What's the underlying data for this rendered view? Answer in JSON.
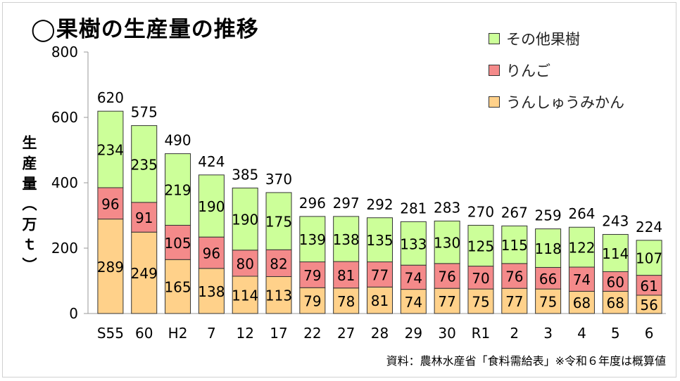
{
  "title": "◯果樹の生産量の推移",
  "source": "資料：農林水産省「食料需給表」※令和６年度は概算値",
  "legend": [
    {
      "label": "その他果樹",
      "color": "#ccff99"
    },
    {
      "label": "りんご",
      "color": "#f48a8a"
    },
    {
      "label": "うんしゅうみかん",
      "color": "#ffd18a"
    }
  ],
  "chart_data": {
    "type": "bar",
    "stacked": true,
    "ylabel": "生産量（万ｔ）",
    "ylim": [
      0,
      800
    ],
    "yticks": [
      0,
      200,
      400,
      600,
      800
    ],
    "grid": false,
    "legend_position": "top-right",
    "categories": [
      "S55",
      "60",
      "H2",
      "7",
      "12",
      "17",
      "22",
      "27",
      "28",
      "29",
      "30",
      "R1",
      "2",
      "3",
      "4",
      "5",
      "6"
    ],
    "totals": [
      620,
      575,
      490,
      424,
      385,
      370,
      296,
      297,
      292,
      281,
      283,
      270,
      267,
      259,
      264,
      243,
      224
    ],
    "series": [
      {
        "name": "うんしゅうみかん",
        "color": "#ffd18a",
        "values": [
          289,
          249,
          165,
          138,
          114,
          113,
          79,
          78,
          81,
          74,
          77,
          75,
          77,
          75,
          68,
          68,
          56
        ]
      },
      {
        "name": "りんご",
        "color": "#f48a8a",
        "values": [
          96,
          91,
          105,
          96,
          80,
          82,
          79,
          81,
          77,
          74,
          76,
          70,
          76,
          66,
          74,
          60,
          61
        ]
      },
      {
        "name": "その他果樹",
        "color": "#ccff99",
        "values": [
          234,
          235,
          219,
          190,
          190,
          175,
          139,
          138,
          135,
          133,
          130,
          125,
          115,
          118,
          122,
          114,
          107
        ]
      }
    ]
  }
}
